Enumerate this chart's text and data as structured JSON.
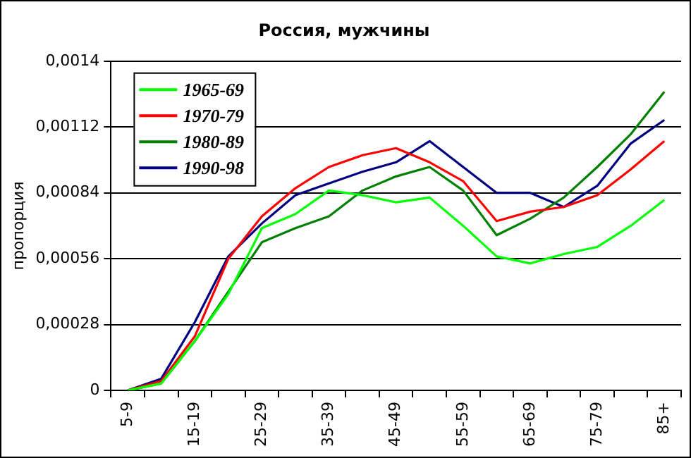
{
  "chart_data": {
    "type": "line",
    "title": "Россия, мужчины",
    "ylabel": "пропорция",
    "categories": [
      "5-9",
      null,
      "15-19",
      null,
      "25-29",
      null,
      "35-39",
      null,
      "45-49",
      null,
      "55-59",
      null,
      "65-69",
      null,
      "75-79",
      null,
      "85+"
    ],
    "series": [
      {
        "name": "1965-69",
        "color": "#00ff00",
        "values": [
          0,
          3e-05,
          0.00021,
          0.00041,
          0.00069,
          0.00075,
          0.00085,
          0.00083,
          0.0008,
          0.00082,
          0.0007,
          0.00057,
          0.00054,
          0.00058,
          0.00061,
          0.0007,
          0.00081
        ]
      },
      {
        "name": "1970-79",
        "color": "#ff0000",
        "values": [
          0,
          4e-05,
          0.00023,
          0.00056,
          0.00074,
          0.00086,
          0.00095,
          0.001,
          0.00103,
          0.00097,
          0.00089,
          0.00072,
          0.00076,
          0.00078,
          0.00083,
          0.00094,
          0.00106
        ]
      },
      {
        "name": "1980-89",
        "color": "#008000",
        "values": [
          0,
          3e-05,
          0.00021,
          0.00042,
          0.00063,
          0.00069,
          0.00074,
          0.00085,
          0.00091,
          0.00095,
          0.00085,
          0.00066,
          0.00073,
          0.00082,
          0.00095,
          0.00109,
          0.00127
        ]
      },
      {
        "name": "1990-98",
        "color": "#000080",
        "values": [
          0,
          5e-05,
          0.00029,
          0.00057,
          0.00071,
          0.00083,
          0.00088,
          0.00093,
          0.00097,
          0.00106,
          0.00095,
          0.00084,
          0.00084,
          0.00078,
          0.00087,
          0.00105,
          0.00115
        ]
      }
    ],
    "ylim": [
      0,
      0.0014
    ],
    "yticks": [
      0,
      {
        "value": 0.00028,
        "label": "0,00028"
      },
      {
        "value": 0.00056,
        "label": "0,00056"
      },
      {
        "value": 0.00084,
        "label": "0,00084"
      },
      {
        "value": 0.00112,
        "label": "0,00112"
      },
      {
        "value": 0.0014,
        "label": "0,0014"
      }
    ],
    "grid": "y",
    "legend": "top left",
    "marker": "none",
    "line_style": "solid"
  }
}
